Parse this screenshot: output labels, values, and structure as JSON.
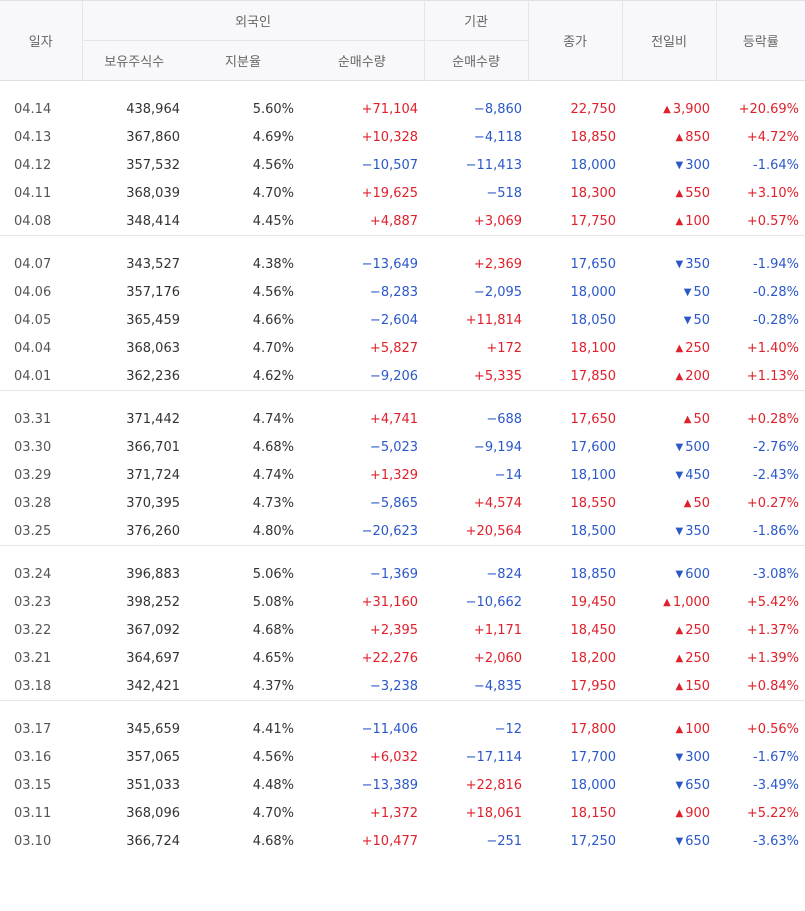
{
  "headers": {
    "date": "일자",
    "foreign": "외국인",
    "institution": "기관",
    "holdings": "보유주식수",
    "ratio": "지분율",
    "foreign_net": "순매수량",
    "inst_net": "순매수량",
    "close": "종가",
    "diff": "전일비",
    "rate": "등락률"
  },
  "colors": {
    "up": "#e0202b",
    "down": "#2b58c9"
  },
  "groups": [
    [
      {
        "date": "04.14",
        "holdings": "438,964",
        "ratio": "5.60%",
        "foreign_net": "+71,104",
        "fn_dir": "up",
        "inst_net": "−8,860",
        "in_dir": "down",
        "close": "22,750",
        "close_dir": "up",
        "diff": "3,900",
        "diff_dir": "up",
        "rate": "+20.69%"
      },
      {
        "date": "04.13",
        "holdings": "367,860",
        "ratio": "4.69%",
        "foreign_net": "+10,328",
        "fn_dir": "up",
        "inst_net": "−4,118",
        "in_dir": "down",
        "close": "18,850",
        "close_dir": "up",
        "diff": "850",
        "diff_dir": "up",
        "rate": "+4.72%"
      },
      {
        "date": "04.12",
        "holdings": "357,532",
        "ratio": "4.56%",
        "foreign_net": "−10,507",
        "fn_dir": "down",
        "inst_net": "−11,413",
        "in_dir": "down",
        "close": "18,000",
        "close_dir": "down",
        "diff": "300",
        "diff_dir": "down",
        "rate": "-1.64%"
      },
      {
        "date": "04.11",
        "holdings": "368,039",
        "ratio": "4.70%",
        "foreign_net": "+19,625",
        "fn_dir": "up",
        "inst_net": "−518",
        "in_dir": "down",
        "close": "18,300",
        "close_dir": "up",
        "diff": "550",
        "diff_dir": "up",
        "rate": "+3.10%"
      },
      {
        "date": "04.08",
        "holdings": "348,414",
        "ratio": "4.45%",
        "foreign_net": "+4,887",
        "fn_dir": "up",
        "inst_net": "+3,069",
        "in_dir": "up",
        "close": "17,750",
        "close_dir": "up",
        "diff": "100",
        "diff_dir": "up",
        "rate": "+0.57%"
      }
    ],
    [
      {
        "date": "04.07",
        "holdings": "343,527",
        "ratio": "4.38%",
        "foreign_net": "−13,649",
        "fn_dir": "down",
        "inst_net": "+2,369",
        "in_dir": "up",
        "close": "17,650",
        "close_dir": "down",
        "diff": "350",
        "diff_dir": "down",
        "rate": "-1.94%"
      },
      {
        "date": "04.06",
        "holdings": "357,176",
        "ratio": "4.56%",
        "foreign_net": "−8,283",
        "fn_dir": "down",
        "inst_net": "−2,095",
        "in_dir": "down",
        "close": "18,000",
        "close_dir": "down",
        "diff": "50",
        "diff_dir": "down",
        "rate": "-0.28%"
      },
      {
        "date": "04.05",
        "holdings": "365,459",
        "ratio": "4.66%",
        "foreign_net": "−2,604",
        "fn_dir": "down",
        "inst_net": "+11,814",
        "in_dir": "up",
        "close": "18,050",
        "close_dir": "down",
        "diff": "50",
        "diff_dir": "down",
        "rate": "-0.28%"
      },
      {
        "date": "04.04",
        "holdings": "368,063",
        "ratio": "4.70%",
        "foreign_net": "+5,827",
        "fn_dir": "up",
        "inst_net": "+172",
        "in_dir": "up",
        "close": "18,100",
        "close_dir": "up",
        "diff": "250",
        "diff_dir": "up",
        "rate": "+1.40%"
      },
      {
        "date": "04.01",
        "holdings": "362,236",
        "ratio": "4.62%",
        "foreign_net": "−9,206",
        "fn_dir": "down",
        "inst_net": "+5,335",
        "in_dir": "up",
        "close": "17,850",
        "close_dir": "up",
        "diff": "200",
        "diff_dir": "up",
        "rate": "+1.13%"
      }
    ],
    [
      {
        "date": "03.31",
        "holdings": "371,442",
        "ratio": "4.74%",
        "foreign_net": "+4,741",
        "fn_dir": "up",
        "inst_net": "−688",
        "in_dir": "down",
        "close": "17,650",
        "close_dir": "up",
        "diff": "50",
        "diff_dir": "up",
        "rate": "+0.28%"
      },
      {
        "date": "03.30",
        "holdings": "366,701",
        "ratio": "4.68%",
        "foreign_net": "−5,023",
        "fn_dir": "down",
        "inst_net": "−9,194",
        "in_dir": "down",
        "close": "17,600",
        "close_dir": "down",
        "diff": "500",
        "diff_dir": "down",
        "rate": "-2.76%"
      },
      {
        "date": "03.29",
        "holdings": "371,724",
        "ratio": "4.74%",
        "foreign_net": "+1,329",
        "fn_dir": "up",
        "inst_net": "−14",
        "in_dir": "down",
        "close": "18,100",
        "close_dir": "down",
        "diff": "450",
        "diff_dir": "down",
        "rate": "-2.43%"
      },
      {
        "date": "03.28",
        "holdings": "370,395",
        "ratio": "4.73%",
        "foreign_net": "−5,865",
        "fn_dir": "down",
        "inst_net": "+4,574",
        "in_dir": "up",
        "close": "18,550",
        "close_dir": "up",
        "diff": "50",
        "diff_dir": "up",
        "rate": "+0.27%"
      },
      {
        "date": "03.25",
        "holdings": "376,260",
        "ratio": "4.80%",
        "foreign_net": "−20,623",
        "fn_dir": "down",
        "inst_net": "+20,564",
        "in_dir": "up",
        "close": "18,500",
        "close_dir": "down",
        "diff": "350",
        "diff_dir": "down",
        "rate": "-1.86%"
      }
    ],
    [
      {
        "date": "03.24",
        "holdings": "396,883",
        "ratio": "5.06%",
        "foreign_net": "−1,369",
        "fn_dir": "down",
        "inst_net": "−824",
        "in_dir": "down",
        "close": "18,850",
        "close_dir": "down",
        "diff": "600",
        "diff_dir": "down",
        "rate": "-3.08%"
      },
      {
        "date": "03.23",
        "holdings": "398,252",
        "ratio": "5.08%",
        "foreign_net": "+31,160",
        "fn_dir": "up",
        "inst_net": "−10,662",
        "in_dir": "down",
        "close": "19,450",
        "close_dir": "up",
        "diff": "1,000",
        "diff_dir": "up",
        "rate": "+5.42%"
      },
      {
        "date": "03.22",
        "holdings": "367,092",
        "ratio": "4.68%",
        "foreign_net": "+2,395",
        "fn_dir": "up",
        "inst_net": "+1,171",
        "in_dir": "up",
        "close": "18,450",
        "close_dir": "up",
        "diff": "250",
        "diff_dir": "up",
        "rate": "+1.37%"
      },
      {
        "date": "03.21",
        "holdings": "364,697",
        "ratio": "4.65%",
        "foreign_net": "+22,276",
        "fn_dir": "up",
        "inst_net": "+2,060",
        "in_dir": "up",
        "close": "18,200",
        "close_dir": "up",
        "diff": "250",
        "diff_dir": "up",
        "rate": "+1.39%"
      },
      {
        "date": "03.18",
        "holdings": "342,421",
        "ratio": "4.37%",
        "foreign_net": "−3,238",
        "fn_dir": "down",
        "inst_net": "−4,835",
        "in_dir": "down",
        "close": "17,950",
        "close_dir": "up",
        "diff": "150",
        "diff_dir": "up",
        "rate": "+0.84%"
      }
    ],
    [
      {
        "date": "03.17",
        "holdings": "345,659",
        "ratio": "4.41%",
        "foreign_net": "−11,406",
        "fn_dir": "down",
        "inst_net": "−12",
        "in_dir": "down",
        "close": "17,800",
        "close_dir": "up",
        "diff": "100",
        "diff_dir": "up",
        "rate": "+0.56%"
      },
      {
        "date": "03.16",
        "holdings": "357,065",
        "ratio": "4.56%",
        "foreign_net": "+6,032",
        "fn_dir": "up",
        "inst_net": "−17,114",
        "in_dir": "down",
        "close": "17,700",
        "close_dir": "down",
        "diff": "300",
        "diff_dir": "down",
        "rate": "-1.67%"
      },
      {
        "date": "03.15",
        "holdings": "351,033",
        "ratio": "4.48%",
        "foreign_net": "−13,389",
        "fn_dir": "down",
        "inst_net": "+22,816",
        "in_dir": "up",
        "close": "18,000",
        "close_dir": "down",
        "diff": "650",
        "diff_dir": "down",
        "rate": "-3.49%"
      },
      {
        "date": "03.11",
        "holdings": "368,096",
        "ratio": "4.70%",
        "foreign_net": "+1,372",
        "fn_dir": "up",
        "inst_net": "+18,061",
        "in_dir": "up",
        "close": "18,150",
        "close_dir": "up",
        "diff": "900",
        "diff_dir": "up",
        "rate": "+5.22%"
      },
      {
        "date": "03.10",
        "holdings": "366,724",
        "ratio": "4.68%",
        "foreign_net": "+10,477",
        "fn_dir": "up",
        "inst_net": "−251",
        "in_dir": "down",
        "close": "17,250",
        "close_dir": "down",
        "diff": "650",
        "diff_dir": "down",
        "rate": "-3.63%"
      }
    ]
  ]
}
